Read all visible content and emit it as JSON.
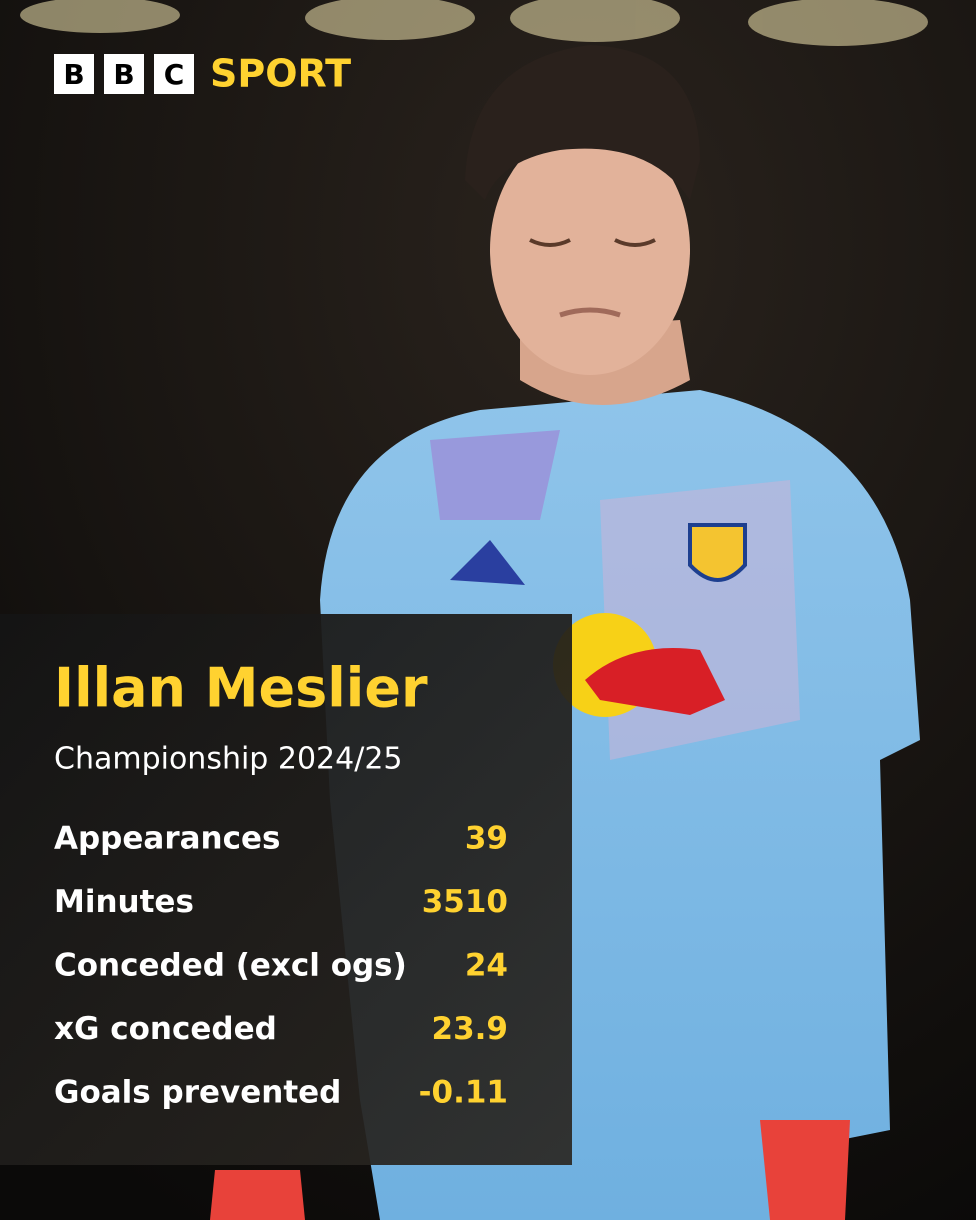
{
  "brand": {
    "blocks": [
      "B",
      "B",
      "C"
    ],
    "name": "SPORT"
  },
  "card": {
    "title": "Illan Meslier",
    "subtitle": "Championship 2024/25",
    "stats": [
      {
        "label": "Appearances",
        "value": "39"
      },
      {
        "label": "Minutes",
        "value": "3510"
      },
      {
        "label": "Conceded (excl ogs)",
        "value": "24"
      },
      {
        "label": "xG conceded",
        "value": "23.9"
      },
      {
        "label": "Goals prevented",
        "value": "-0.11"
      }
    ]
  }
}
